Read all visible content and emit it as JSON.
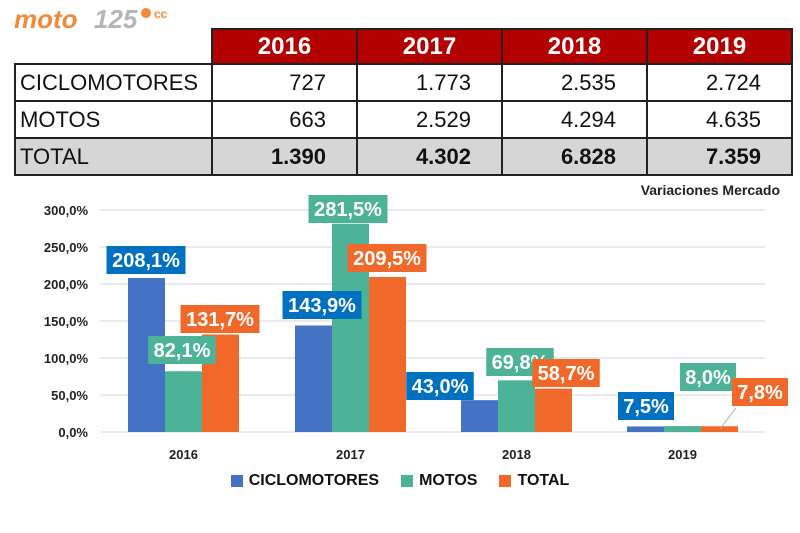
{
  "logo": {
    "text": "moto125",
    "superscript": "cc"
  },
  "table": {
    "years": [
      "2016",
      "2017",
      "2018",
      "2019"
    ],
    "rows": [
      {
        "label": "CICLOMOTORES",
        "values": [
          "727",
          "1.773",
          "2.535",
          "2.724"
        ]
      },
      {
        "label": "MOTOS",
        "values": [
          "663",
          "2.529",
          "4.294",
          "4.635"
        ]
      },
      {
        "label": "TOTAL",
        "values": [
          "1.390",
          "4.302",
          "6.828",
          "7.359"
        ]
      }
    ],
    "header_color": "#b30000",
    "total_row_color": "#d6d6d6"
  },
  "chart_data": {
    "type": "bar",
    "title": "Variaciones Mercado",
    "categories": [
      "2016",
      "2017",
      "2018",
      "2019"
    ],
    "series": [
      {
        "name": "CICLOMOTORES",
        "color": "#4472c4",
        "label_color": "#0070c0",
        "values": [
          208.1,
          143.9,
          43.0,
          7.5
        ],
        "labels": [
          "208,1%",
          "143,9%",
          "43,0%",
          "7,5%"
        ]
      },
      {
        "name": "MOTOS",
        "color": "#4db397",
        "label_color": "#4db397",
        "values": [
          82.1,
          281.5,
          69.8,
          8.0
        ],
        "labels": [
          "82,1%",
          "281,5%",
          "69,8%",
          "8,0%"
        ]
      },
      {
        "name": "TOTAL",
        "color": "#f0692a",
        "label_color": "#f0692a",
        "values": [
          131.7,
          209.5,
          58.7,
          7.8
        ],
        "labels": [
          "131,7%",
          "209,5%",
          "58,7%",
          "7,8%"
        ]
      }
    ],
    "ylim": [
      0,
      300
    ],
    "yticks": [
      0,
      50,
      100,
      150,
      200,
      250,
      300
    ],
    "ytick_labels": [
      "0,0%",
      "50,0%",
      "100,0%",
      "150,0%",
      "200,0%",
      "250,0%",
      "300,0%"
    ],
    "xlabel": "",
    "ylabel": "",
    "grid": true,
    "legend_position": "bottom"
  }
}
